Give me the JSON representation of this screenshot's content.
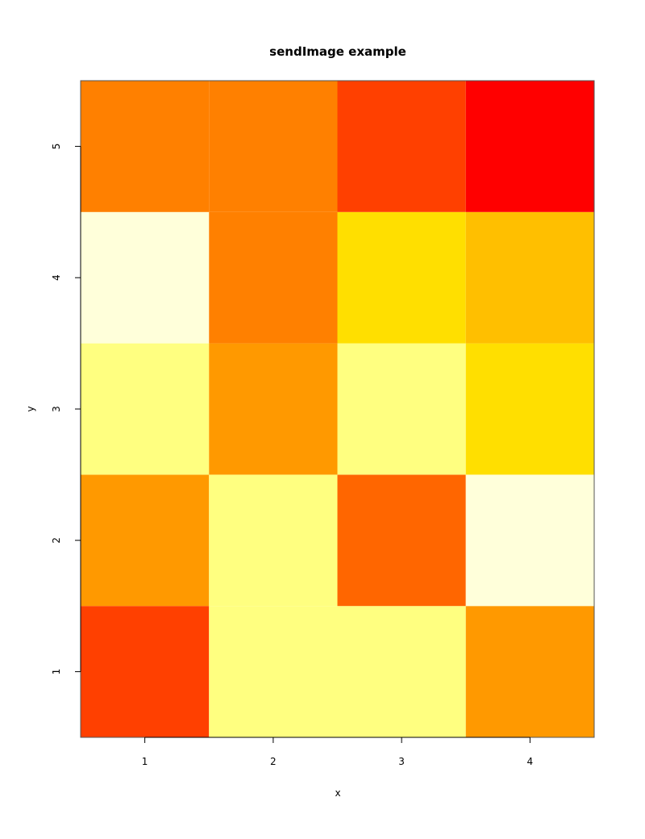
{
  "chart_data": {
    "type": "heatmap",
    "title": "sendImage example",
    "xlabel": "x",
    "ylabel": "y",
    "x": [
      1,
      2,
      3,
      4
    ],
    "y": [
      1,
      2,
      3,
      4,
      5
    ],
    "xlim": [
      0.5,
      4.5
    ],
    "ylim": [
      0.5,
      5.5
    ],
    "x_ticks": [
      "1",
      "2",
      "3",
      "4"
    ],
    "y_ticks": [
      "1",
      "2",
      "3",
      "4",
      "5"
    ],
    "colors": {
      "bright_red": "#FF0000",
      "red_orange": "#FF4000",
      "dark_orange": "#FF6600",
      "orange": "#FF8000",
      "amber": "#FF9900",
      "gold": "#FFBF00",
      "yellow": "#FFDF00",
      "light_yellow": "#FFFF80",
      "cream": "#FFFFDA"
    },
    "cells": [
      {
        "x": 1,
        "y": 1,
        "color": "#FF4000"
      },
      {
        "x": 2,
        "y": 1,
        "color": "#FFFF80"
      },
      {
        "x": 3,
        "y": 1,
        "color": "#FFFF80"
      },
      {
        "x": 4,
        "y": 1,
        "color": "#FF9900"
      },
      {
        "x": 1,
        "y": 2,
        "color": "#FF9900"
      },
      {
        "x": 2,
        "y": 2,
        "color": "#FFFF80"
      },
      {
        "x": 3,
        "y": 2,
        "color": "#FF6600"
      },
      {
        "x": 4,
        "y": 2,
        "color": "#FFFFDA"
      },
      {
        "x": 1,
        "y": 3,
        "color": "#FFFF80"
      },
      {
        "x": 2,
        "y": 3,
        "color": "#FF9900"
      },
      {
        "x": 3,
        "y": 3,
        "color": "#FFFF80"
      },
      {
        "x": 4,
        "y": 3,
        "color": "#FFDF00"
      },
      {
        "x": 1,
        "y": 4,
        "color": "#FFFFDA"
      },
      {
        "x": 2,
        "y": 4,
        "color": "#FF8000"
      },
      {
        "x": 3,
        "y": 4,
        "color": "#FFDF00"
      },
      {
        "x": 4,
        "y": 4,
        "color": "#FFBF00"
      },
      {
        "x": 1,
        "y": 5,
        "color": "#FF8000"
      },
      {
        "x": 2,
        "y": 5,
        "color": "#FF8000"
      },
      {
        "x": 3,
        "y": 5,
        "color": "#FF4000"
      },
      {
        "x": 4,
        "y": 5,
        "color": "#FF0000"
      }
    ]
  }
}
